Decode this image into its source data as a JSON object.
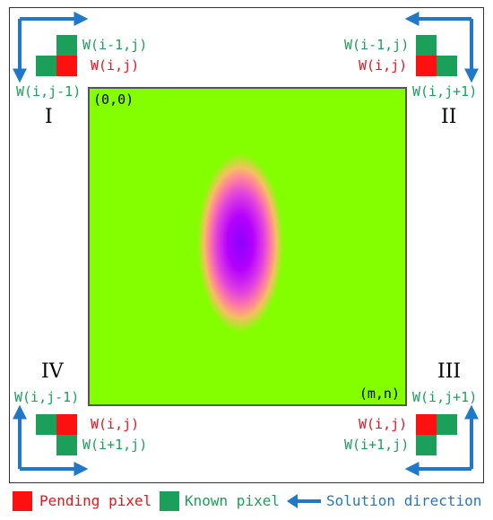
{
  "colors": {
    "known": "#1aa05a",
    "pending": "#ff1010",
    "arrow": "#1f78c8",
    "field": "#84ff00"
  },
  "field": {
    "origin_label": "(0,0)",
    "end_label": "(m,n)"
  },
  "quadrants": {
    "q1": {
      "numeral": "I",
      "top_label": "W(i-1,j)",
      "mid_label": "W(i,j)",
      "side_label": "W(i,j-1)"
    },
    "q2": {
      "numeral": "II",
      "top_label": "W(i-1,j)",
      "mid_label": "W(i,j)",
      "side_label": "W(i,j+1)"
    },
    "q3": {
      "numeral": "III",
      "side_label": "W(i,j+1)",
      "mid_label": "W(i,j)",
      "bottom_label": "W(i+1,j)"
    },
    "q4": {
      "numeral": "IV",
      "side_label": "W(i,j-1)",
      "mid_label": "W(i,j)",
      "bottom_label": "W(i+1,j)"
    }
  },
  "legend": {
    "pending": "Pending pixel",
    "known": "Known pixel",
    "direction": "Solution direction"
  }
}
